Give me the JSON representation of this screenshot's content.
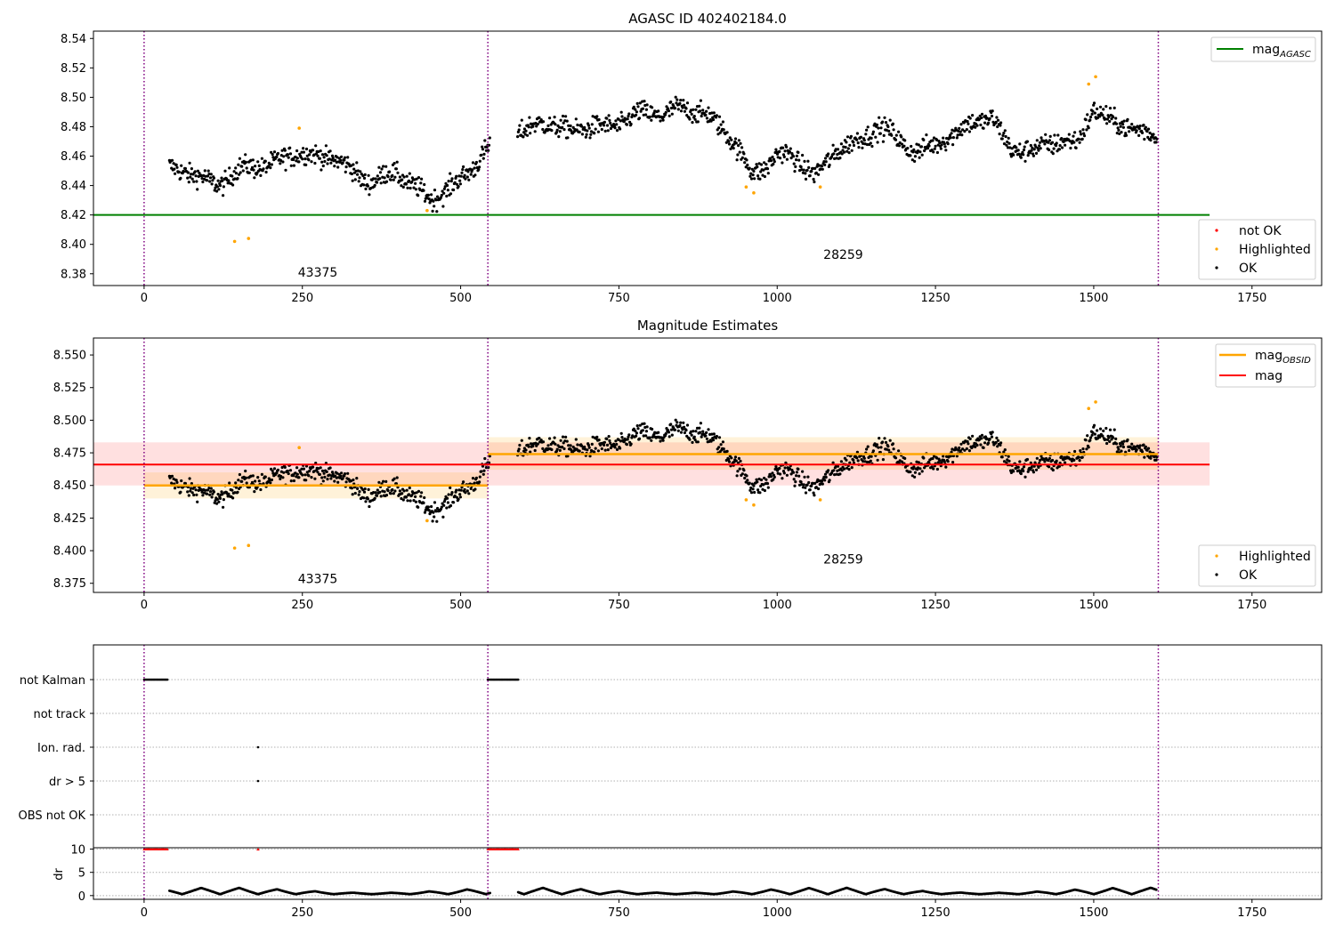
{
  "chart_data": [
    {
      "type": "scatter",
      "title": "AGASC ID 402402184.0",
      "xlim": [
        -80,
        1860
      ],
      "ylim": [
        8.372,
        8.545
      ],
      "x_ticks": [
        0,
        250,
        500,
        750,
        1000,
        1250,
        1500,
        1750
      ],
      "y_ticks": [
        8.38,
        8.4,
        8.42,
        8.44,
        8.46,
        8.48,
        8.5,
        8.52,
        8.54
      ],
      "y_tick_decimals": 2,
      "grid": false,
      "obsid_boundaries": [
        0,
        543,
        1602
      ],
      "obsid_labels": [
        {
          "text": "43375",
          "x": 243,
          "y": 8.378
        },
        {
          "text": "28259",
          "x": 1073,
          "y": 8.39
        }
      ],
      "lines": [
        {
          "name": "mag_AGASC",
          "label_main": "mag",
          "label_sub": "AGASC",
          "y": 8.42,
          "x": [
            -80,
            1683
          ],
          "color": "#008000"
        }
      ],
      "legend_top": {
        "position": "top-right",
        "entries": [
          {
            "name": "mag",
            "sub": "AGASC",
            "color": "#008000"
          }
        ]
      },
      "legend_bottom": {
        "position": "lower-right",
        "entries": [
          {
            "name": "not OK",
            "color": "#ff0000"
          },
          {
            "name": "Highlighted",
            "color": "#ffa500"
          },
          {
            "name": "OK",
            "color": "#000000"
          }
        ]
      },
      "series_profile": [
        {
          "x": 40,
          "y": 8.452
        },
        {
          "x": 80,
          "y": 8.447
        },
        {
          "x": 120,
          "y": 8.443
        },
        {
          "x": 160,
          "y": 8.449
        },
        {
          "x": 200,
          "y": 8.457
        },
        {
          "x": 250,
          "y": 8.462
        },
        {
          "x": 300,
          "y": 8.457
        },
        {
          "x": 350,
          "y": 8.446
        },
        {
          "x": 400,
          "y": 8.445
        },
        {
          "x": 430,
          "y": 8.44
        },
        {
          "x": 455,
          "y": 8.43
        },
        {
          "x": 490,
          "y": 8.442
        },
        {
          "x": 520,
          "y": 8.452
        },
        {
          "x": 543,
          "y": 8.463
        },
        {
          "x": 590,
          "y": 8.479
        },
        {
          "x": 630,
          "y": 8.481
        },
        {
          "x": 680,
          "y": 8.477
        },
        {
          "x": 740,
          "y": 8.483
        },
        {
          "x": 800,
          "y": 8.487
        },
        {
          "x": 840,
          "y": 8.494
        },
        {
          "x": 890,
          "y": 8.488
        },
        {
          "x": 920,
          "y": 8.475
        },
        {
          "x": 960,
          "y": 8.449
        },
        {
          "x": 1000,
          "y": 8.462
        },
        {
          "x": 1060,
          "y": 8.448
        },
        {
          "x": 1100,
          "y": 8.466
        },
        {
          "x": 1160,
          "y": 8.478
        },
        {
          "x": 1200,
          "y": 8.468
        },
        {
          "x": 1250,
          "y": 8.466
        },
        {
          "x": 1300,
          "y": 8.481
        },
        {
          "x": 1340,
          "y": 8.486
        },
        {
          "x": 1370,
          "y": 8.467
        },
        {
          "x": 1410,
          "y": 8.461
        },
        {
          "x": 1450,
          "y": 8.473
        },
        {
          "x": 1475,
          "y": 8.47
        },
        {
          "x": 1500,
          "y": 8.492
        },
        {
          "x": 1530,
          "y": 8.483
        },
        {
          "x": 1570,
          "y": 8.476
        },
        {
          "x": 1600,
          "y": 8.475
        }
      ],
      "highlighted_points": [
        {
          "x": 143,
          "y": 8.402
        },
        {
          "x": 165,
          "y": 8.404
        },
        {
          "x": 245,
          "y": 8.479
        },
        {
          "x": 447,
          "y": 8.423
        },
        {
          "x": 951,
          "y": 8.439
        },
        {
          "x": 963,
          "y": 8.435
        },
        {
          "x": 1068,
          "y": 8.439
        },
        {
          "x": 1492,
          "y": 8.509
        },
        {
          "x": 1503,
          "y": 8.514
        }
      ]
    },
    {
      "type": "scatter",
      "title": "Magnitude Estimates",
      "xlim": [
        -80,
        1860
      ],
      "ylim": [
        8.368,
        8.563
      ],
      "x_ticks": [
        0,
        250,
        500,
        750,
        1000,
        1250,
        1500,
        1750
      ],
      "y_ticks": [
        8.375,
        8.4,
        8.425,
        8.45,
        8.475,
        8.5,
        8.525,
        8.55
      ],
      "y_tick_decimals": 3,
      "grid": false,
      "obsid_boundaries": [
        0,
        543,
        1602
      ],
      "obsid_labels": [
        {
          "text": "43375",
          "x": 243,
          "y": 8.375
        },
        {
          "text": "28259",
          "x": 1073,
          "y": 8.39
        }
      ],
      "mag": {
        "value": 8.466,
        "band": [
          8.45,
          8.483
        ],
        "x": [
          -80,
          1683
        ],
        "color": "#ff0000"
      },
      "mag_obsid": [
        {
          "x": [
            0,
            543
          ],
          "value": 8.45,
          "band": [
            8.44,
            8.46
          ]
        },
        {
          "x": [
            543,
            1602
          ],
          "value": 8.474,
          "band": [
            8.462,
            8.487
          ]
        }
      ],
      "legend_top": {
        "position": "top-right",
        "entries": [
          {
            "name": "mag",
            "sub": "OBSID",
            "color": "#ffa500"
          },
          {
            "name": "mag",
            "sub": "",
            "color": "#ff0000"
          }
        ]
      },
      "legend_bottom": {
        "position": "lower-right",
        "entries": [
          {
            "name": "Highlighted",
            "color": "#ffa500"
          },
          {
            "name": "OK",
            "color": "#000000"
          }
        ]
      }
    },
    {
      "type": "scatter",
      "xlim": [
        -80,
        1860
      ],
      "x_ticks": [
        0,
        250,
        500,
        750,
        1000,
        1250,
        1500,
        1750
      ],
      "flag_rows": [
        "not Kalman",
        "not track",
        "Ion. rad.",
        "dr > 5",
        "OBS not OK"
      ],
      "flag_segments": [
        {
          "row": "not Kalman",
          "x": [
            0,
            38
          ]
        },
        {
          "row": "not Kalman",
          "x": [
            543,
            592
          ]
        }
      ],
      "flag_points": [
        {
          "row": "Ion. rad.",
          "x": 180
        },
        {
          "row": "dr > 5",
          "x": 180
        }
      ],
      "dr": {
        "ylabel": "dr",
        "ylim": [
          -0.8,
          10.3
        ],
        "y_ticks": [
          0,
          5,
          10
        ],
        "clipped_segments": [
          {
            "x": [
              0,
              38
            ]
          },
          {
            "x": [
              543,
              592
            ]
          }
        ],
        "clipped_points": [
          {
            "x": 180
          }
        ],
        "clip_value": 10
      },
      "obsid_boundaries": [
        0,
        543,
        1602
      ]
    }
  ]
}
